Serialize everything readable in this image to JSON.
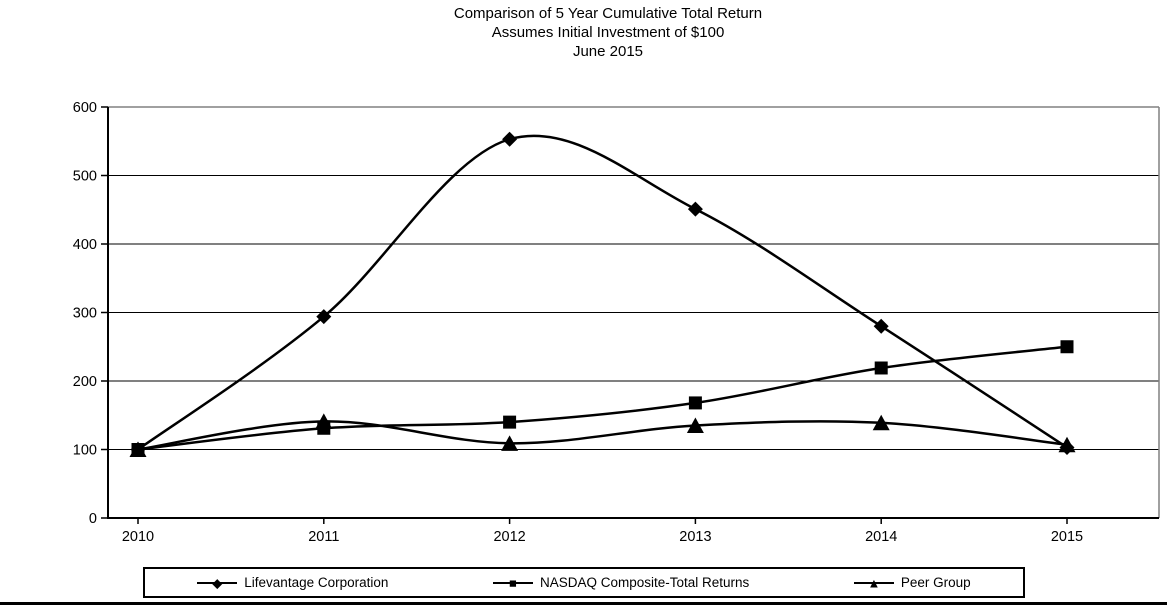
{
  "title": {
    "line1": "Comparison of 5 Year Cumulative  Total Return",
    "line2": "Assumes  Initial Investment  of $100",
    "line3": "June 2015"
  },
  "chart_data": {
    "type": "line",
    "title": "Comparison of 5 Year Cumulative  Total Return",
    "subtitle": "Assumes  Initial Investment  of $100",
    "date_label": "June 2015",
    "categories": [
      "2010",
      "2011",
      "2012",
      "2013",
      "2014",
      "2015"
    ],
    "series": [
      {
        "name": "Lifevantage Corporation",
        "marker": "diamond",
        "marker_glyph": "◆",
        "values": [
          100,
          294,
          553,
          451,
          280,
          103
        ]
      },
      {
        "name": "NASDAQ Composite-Total Returns",
        "marker": "square",
        "marker_glyph": "■",
        "values": [
          100,
          131,
          140,
          168,
          219,
          250
        ]
      },
      {
        "name": "Peer Group",
        "marker": "triangle",
        "marker_glyph": "▲",
        "values": [
          100,
          141,
          109,
          135,
          139,
          107
        ]
      }
    ],
    "ylim": [
      0,
      600
    ],
    "y_ticks": [
      0,
      100,
      200,
      300,
      400,
      500,
      600
    ],
    "smooth": true,
    "grid": "horizontal",
    "legend_position": "bottom",
    "line_color": "#000000",
    "grid_color": "#000000",
    "frame_color": "#808080",
    "background": "#ffffff"
  }
}
